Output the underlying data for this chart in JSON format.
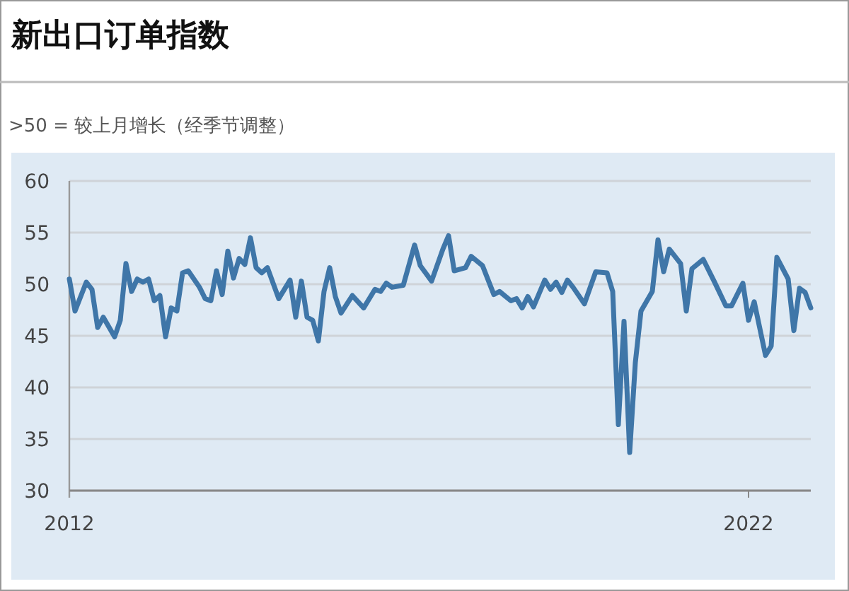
{
  "chart_data": {
    "type": "line",
    "title": "新出口订单指数",
    "subtitle": ">50 = 较上月增长（经季节调整）",
    "x": [
      "2012-01",
      "2012-02",
      "2012-04",
      "2012-05",
      "2012-06",
      "2012-07",
      "2012-09",
      "2012-10",
      "2012-11",
      "2012-12",
      "2013-01",
      "2013-02",
      "2013-03",
      "2013-04",
      "2013-05",
      "2013-06",
      "2013-07",
      "2013-08",
      "2013-09",
      "2013-10",
      "2013-12",
      "2014-01",
      "2014-02",
      "2014-03",
      "2014-04",
      "2014-05",
      "2014-06",
      "2014-07",
      "2014-08",
      "2014-09",
      "2014-10",
      "2014-11",
      "2014-12",
      "2015-02",
      "2015-04",
      "2015-05",
      "2015-06",
      "2015-07",
      "2015-08",
      "2015-09",
      "2015-10",
      "2015-11",
      "2015-12",
      "2016-01",
      "2016-03",
      "2016-05",
      "2016-07",
      "2016-08",
      "2016-09",
      "2016-10",
      "2016-12",
      "2017-02",
      "2017-03",
      "2017-05",
      "2017-07",
      "2017-08",
      "2017-09",
      "2017-11",
      "2017-12",
      "2018-02",
      "2018-04",
      "2018-05",
      "2018-07",
      "2018-08",
      "2018-09",
      "2018-10",
      "2018-11",
      "2019-01",
      "2019-02",
      "2019-03",
      "2019-04",
      "2019-05",
      "2019-06",
      "2019-08",
      "2019-10",
      "2019-12",
      "2020-01",
      "2020-02",
      "2020-03",
      "2020-04",
      "2020-05",
      "2020-06",
      "2020-08",
      "2020-09",
      "2020-10",
      "2020-11",
      "2021-01",
      "2021-02",
      "2021-03",
      "2021-05",
      "2021-07",
      "2021-09",
      "2021-10",
      "2021-12",
      "2022-01",
      "2022-02",
      "2022-04",
      "2022-05",
      "2022-06",
      "2022-08",
      "2022-09",
      "2022-10",
      "2022-11",
      "2022-12"
    ],
    "series": [
      {
        "color": "#3f76a8",
        "values": [
          50.5,
          47.4,
          50.2,
          49.5,
          45.8,
          46.8,
          44.9,
          46.5,
          52.0,
          49.3,
          50.5,
          50.2,
          50.5,
          48.4,
          48.9,
          44.9,
          47.7,
          47.4,
          51.1,
          51.3,
          49.7,
          48.6,
          48.4,
          51.3,
          49.0,
          53.2,
          50.6,
          52.5,
          51.9,
          54.5,
          51.6,
          51.1,
          51.6,
          48.6,
          50.4,
          46.8,
          50.3,
          46.8,
          46.5,
          44.5,
          49.3,
          51.6,
          48.8,
          47.2,
          48.9,
          47.7,
          49.5,
          49.3,
          50.1,
          49.7,
          49.9,
          53.8,
          51.8,
          50.3,
          53.4,
          54.7,
          51.3,
          51.6,
          52.7,
          51.8,
          49.0,
          49.3,
          48.4,
          48.6,
          47.7,
          48.8,
          47.8,
          50.4,
          49.5,
          50.2,
          49.2,
          50.4,
          49.7,
          48.1,
          51.2,
          51.1,
          49.3,
          36.4,
          46.4,
          33.7,
          42.4,
          47.4,
          49.3,
          54.3,
          51.2,
          53.4,
          52.0,
          47.4,
          51.5,
          52.4,
          50.2,
          47.9,
          47.9,
          50.1,
          46.5,
          48.3,
          43.1,
          44.0,
          52.6,
          50.5,
          45.5,
          49.6,
          49.2,
          47.7
        ]
      }
    ],
    "xlim": [
      "2012-01",
      "2022-12"
    ],
    "xticks": [
      "2012",
      "2022"
    ],
    "ylim": [
      30,
      60
    ],
    "yticks": [
      30,
      35,
      40,
      45,
      50,
      55,
      60
    ],
    "grid": "y",
    "line_style": "solid",
    "marker": "none"
  }
}
